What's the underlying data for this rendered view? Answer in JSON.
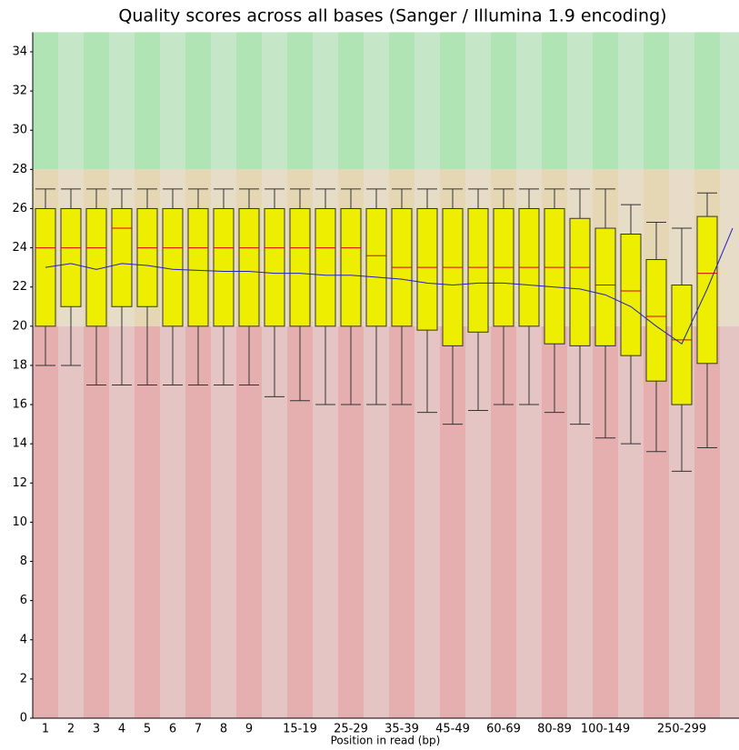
{
  "chart_data": {
    "type": "box",
    "title": "Quality scores across all bases (Sanger / Illumina 1.9 encoding)",
    "x_label": "Position in read (bp)",
    "categories": [
      "1",
      "2",
      "3",
      "4",
      "5",
      "6",
      "7",
      "8",
      "9",
      null,
      "15-19",
      null,
      "25-29",
      null,
      "35-39",
      null,
      "45-49",
      null,
      "60-69",
      null,
      "80-89",
      null,
      "100-149",
      null,
      null,
      "250-299",
      null,
      null
    ],
    "median": [
      24,
      24,
      24,
      25,
      24,
      24,
      24,
      24,
      24,
      24,
      24,
      24,
      24,
      23.6,
      23,
      23,
      23,
      23,
      23,
      23,
      23,
      23,
      22.1,
      21.8,
      20.5,
      19.3,
      22.7,
      null
    ],
    "q1": [
      20,
      21,
      20,
      21,
      21,
      20,
      20,
      20,
      20,
      20,
      20,
      20,
      20,
      20,
      20,
      19.8,
      19,
      19.7,
      20,
      20,
      19.1,
      19,
      19,
      18.5,
      17.2,
      16,
      18.1,
      null
    ],
    "q3": [
      26,
      26,
      26,
      26,
      26,
      26,
      26,
      26,
      26,
      26,
      26,
      26,
      26,
      26,
      26,
      26,
      26,
      26,
      26,
      26,
      26,
      25.5,
      25,
      24.7,
      23.4,
      22.1,
      25.6,
      null
    ],
    "low": [
      18,
      18,
      17,
      17,
      17,
      17,
      17,
      17,
      17,
      16.4,
      16.2,
      16,
      16,
      16,
      16,
      15.6,
      15,
      15.7,
      16,
      16,
      15.6,
      15,
      14.3,
      14,
      13.6,
      12.6,
      13.8,
      null
    ],
    "high": [
      27,
      27,
      27,
      27,
      27,
      27,
      27,
      27,
      27,
      27,
      27,
      27,
      27,
      27,
      27,
      27,
      27,
      27,
      27,
      27,
      27,
      27,
      27,
      26.2,
      25.3,
      25,
      26.8,
      null
    ],
    "mean": [
      23,
      23.2,
      22.9,
      23.2,
      23.1,
      22.9,
      22.85,
      22.8,
      22.8,
      22.7,
      22.7,
      22.6,
      22.6,
      22.5,
      22.4,
      22.2,
      22.1,
      22.2,
      22.2,
      22.1,
      22,
      21.9,
      21.6,
      21,
      20,
      19.1,
      21.9,
      25
    ],
    "box_color": "#eeee00",
    "median_color": "#e00000",
    "mean_color": "#2020c0",
    "ylim": [
      0,
      35
    ],
    "yticks": [
      0,
      2,
      4,
      6,
      8,
      10,
      12,
      14,
      16,
      18,
      20,
      22,
      24,
      26,
      28,
      30,
      32,
      34
    ],
    "bands": [
      {
        "from": 28,
        "to": 35,
        "colors": [
          "#b0e4b4",
          "#c6e6c8"
        ]
      },
      {
        "from": 20,
        "to": 28,
        "colors": [
          "#e6d7b4",
          "#e6dcc8"
        ]
      },
      {
        "from": 0,
        "to": 20,
        "colors": [
          "#e6afaf",
          "#e5c4c4"
        ]
      }
    ]
  }
}
